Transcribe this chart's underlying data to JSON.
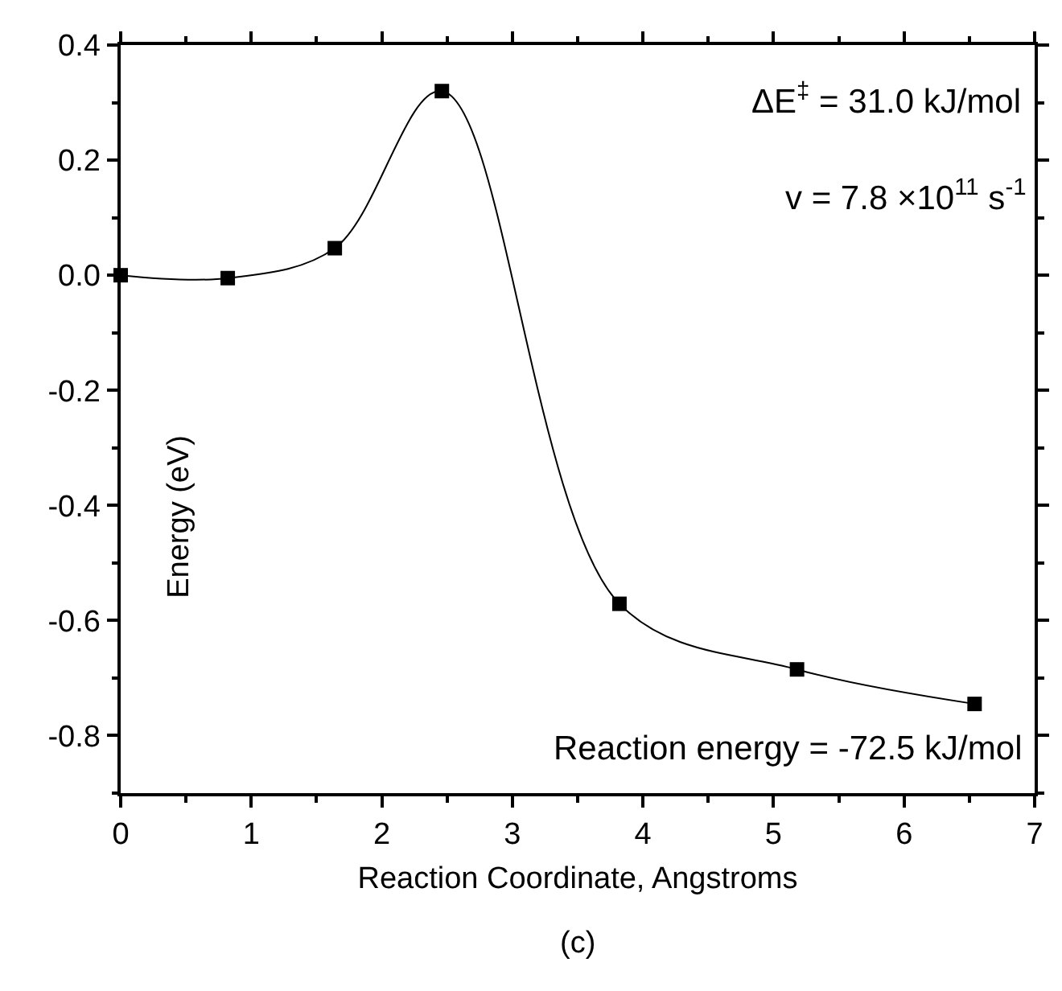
{
  "chart_data": {
    "type": "line",
    "xlabel": "Reaction Coordinate, Angstroms",
    "ylabel": "Energy (eV)",
    "x": [
      0,
      0.82,
      1.64,
      2.46,
      3.82,
      5.18,
      6.54
    ],
    "series": [
      {
        "color": "#000000",
        "values": [
          0,
          -0.005,
          0.047,
          0.32,
          -0.571,
          -0.685,
          -0.745
        ]
      }
    ],
    "xlim": [
      0,
      7
    ],
    "xticks": [
      0,
      1,
      2,
      3,
      4,
      5,
      6,
      7
    ],
    "ylim": [
      -0.9,
      0.4
    ],
    "yticks": [
      {
        "value": -0.8,
        "label": "-0.8"
      },
      {
        "value": -0.6,
        "label": "-0.6"
      },
      {
        "value": -0.4,
        "label": "-0.4"
      },
      {
        "value": -0.2,
        "label": "-0.2"
      },
      {
        "value": 0,
        "label": "0.0"
      },
      {
        "value": 0.2,
        "label": "0.2"
      },
      {
        "value": 0.4,
        "label": "0.4"
      }
    ],
    "marker": "square",
    "line_style": "solid",
    "annotations": [
      "ΔE$^{‡}$ = 31.0 kJ/mol",
      "v = 7.8 ×10$^{11}$ s$^{-1}$",
      "Reaction energy = -72.5 kJ/mol",
      "(c)"
    ]
  }
}
